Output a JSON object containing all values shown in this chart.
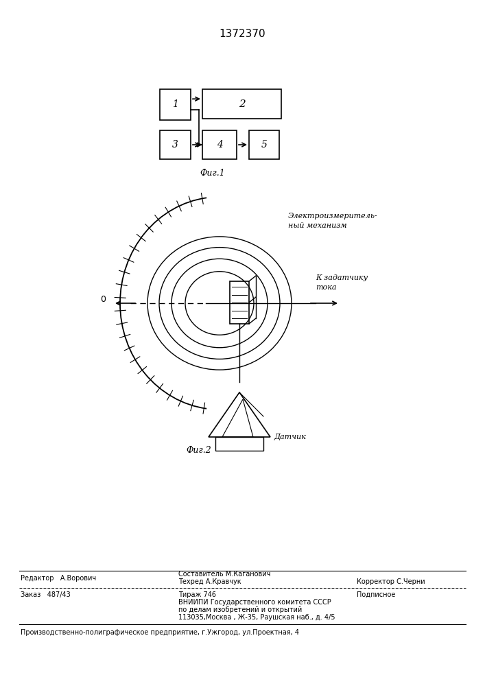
{
  "title": "1372370",
  "fig1_caption": "Фиг.1",
  "fig2_caption": "Фиг.2",
  "text_editor": "Редактор   А.Ворович",
  "text_compiler": "Составитель М.Каганович",
  "text_techred": "Техред А.Кравчук",
  "text_corrector": "Корректор С.Черни",
  "text_order": "Заказ   487/43",
  "text_tirazh": "Тираж 746",
  "text_podpisnoe": "Подписное",
  "text_vniipи": "ВНИИПИ Государственного комитета СССР",
  "text_po_delam": "по делам изобретений и открытий",
  "text_address": "113035,Москва , Ж-35, Раушская наб., д. 4/5",
  "text_proizv": "Производственно-полиграфическое предприятие, г.Ужгород, ул.Проектная, 4",
  "text_elektro": "Электроизмеритель-\nный механизм",
  "text_k_zad": "К задатчику\nтока",
  "text_datchik": "Датчик",
  "bg_color": "#ffffff",
  "line_color": "#000000"
}
